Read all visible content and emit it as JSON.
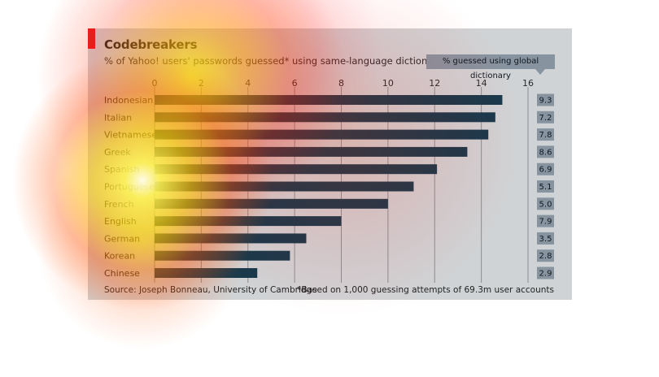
{
  "chart_data": {
    "type": "bar",
    "orientation": "horizontal",
    "title": "Codebreakers",
    "subtitle": "% of Yahoo! users' passwords guessed* using same-language dictionary",
    "categories": [
      "Indonesian",
      "Italian",
      "Vietnamese",
      "Greek",
      "Spanish",
      "Portuguese",
      "French",
      "English",
      "German",
      "Korean",
      "Chinese"
    ],
    "values": [
      14.9,
      14.6,
      14.3,
      13.4,
      12.1,
      11.1,
      10.0,
      8.0,
      6.5,
      5.8,
      4.4
    ],
    "xticks": [
      "0",
      "2",
      "4",
      "6",
      "8",
      "10",
      "12",
      "14",
      "16"
    ],
    "xlim": [
      0,
      16
    ],
    "grid": true,
    "global_dictionary": {
      "label": "% guessed using global dictionary",
      "values": [
        "9.3",
        "7.2",
        "7.8",
        "8.6",
        "6.9",
        "5.1",
        "5.0",
        "7.9",
        "3.5",
        "2.8",
        "2.9"
      ]
    },
    "source": "Source: Joseph Bonneau, University of Cambridge",
    "footnote": "*Based on 1,000 guessing attempts of 69.3m user accounts"
  },
  "colors": {
    "panel": "#d0d3d5",
    "bar": "#173a4c",
    "box": "#8794a0",
    "accent": "#e01d1f",
    "grid": "#8a8e92"
  }
}
